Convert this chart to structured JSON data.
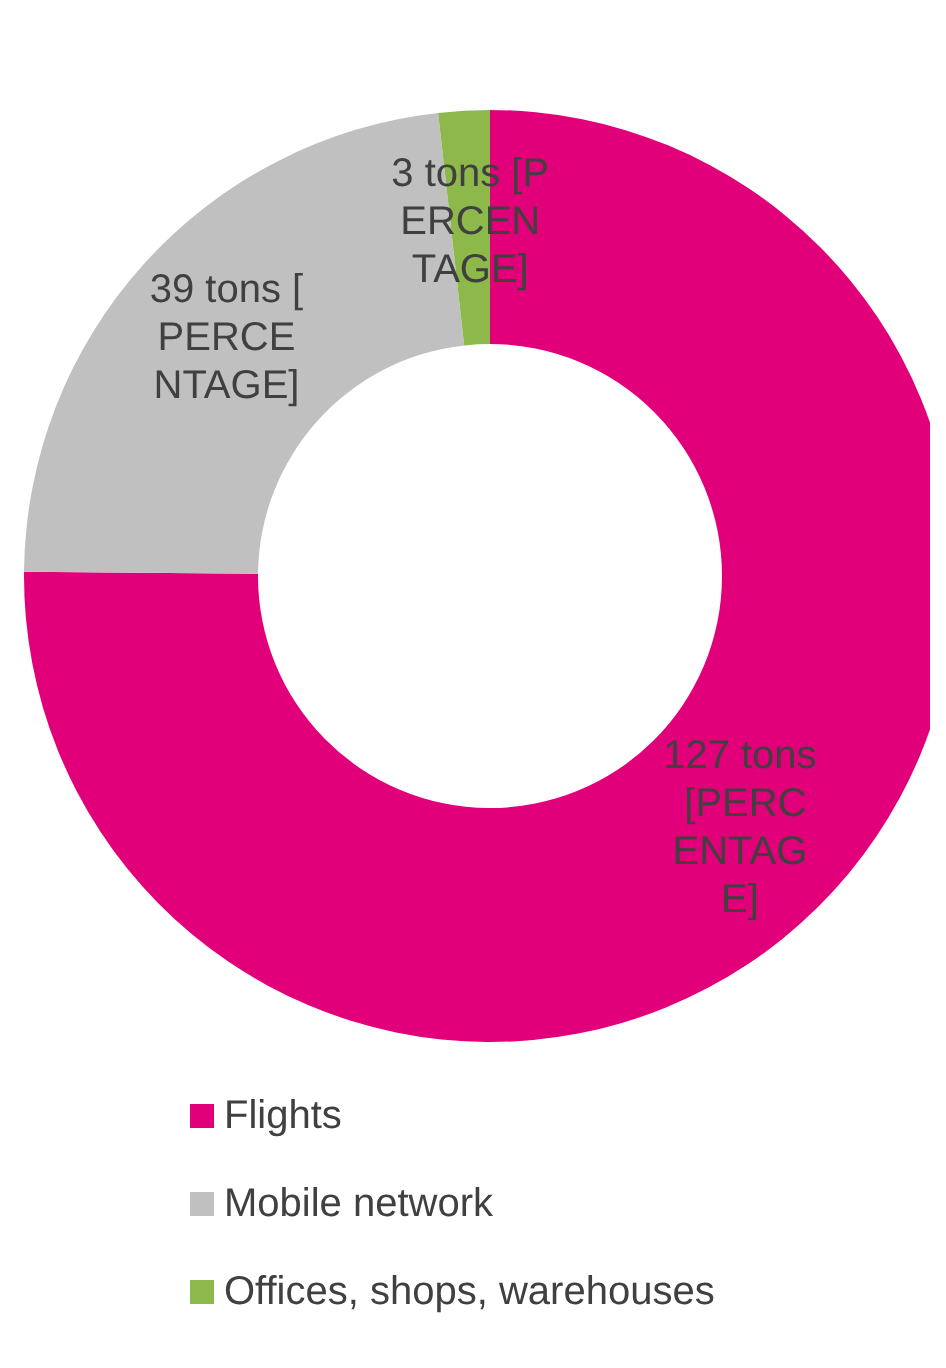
{
  "chart_data": {
    "type": "donut",
    "categories": [
      "Flights",
      "Mobile network",
      "Offices, shops, warehouses"
    ],
    "values": [
      127,
      39,
      3
    ],
    "colors": [
      "#e2007a",
      "#c0c0c0",
      "#8db94a"
    ],
    "value_labels": [
      "127 tons [PERCENTAGE]",
      "39 tons [PERCENTAGE]",
      "3 tons [PERCENTAGE]"
    ],
    "legend": "bottom"
  }
}
